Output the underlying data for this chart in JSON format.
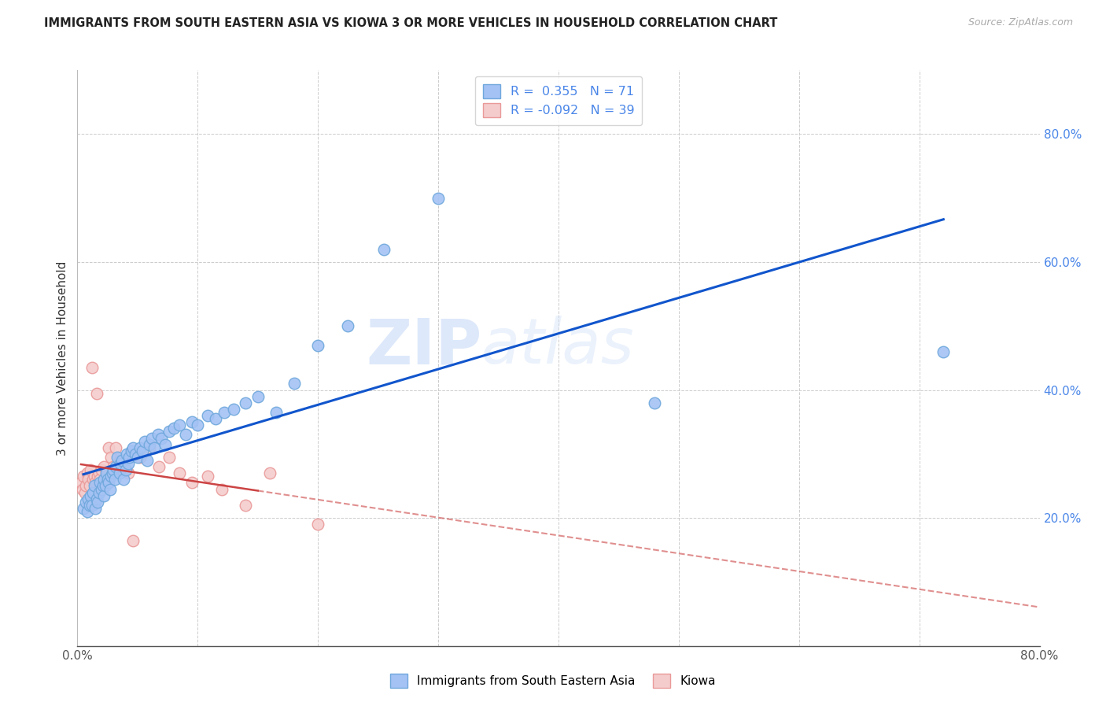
{
  "title": "IMMIGRANTS FROM SOUTH EASTERN ASIA VS KIOWA 3 OR MORE VEHICLES IN HOUSEHOLD CORRELATION CHART",
  "source": "Source: ZipAtlas.com",
  "ylabel": "3 or more Vehicles in Household",
  "xlim": [
    0.0,
    0.8
  ],
  "ylim": [
    0.0,
    0.9
  ],
  "blue_color": "#6fa8dc",
  "blue_fill": "#a4c2f4",
  "pink_color": "#ea9999",
  "pink_fill": "#f4cccc",
  "line_blue": "#1155cc",
  "line_pink": "#cc4444",
  "R_blue": 0.355,
  "N_blue": 71,
  "R_pink": -0.092,
  "N_pink": 39,
  "legend_label_blue": "Immigrants from South Eastern Asia",
  "legend_label_pink": "Kiowa",
  "watermark_zip": "ZIP",
  "watermark_atlas": "atlas",
  "blue_x": [
    0.005,
    0.007,
    0.008,
    0.009,
    0.01,
    0.011,
    0.012,
    0.013,
    0.014,
    0.015,
    0.016,
    0.017,
    0.018,
    0.019,
    0.02,
    0.021,
    0.022,
    0.022,
    0.023,
    0.024,
    0.025,
    0.026,
    0.027,
    0.028,
    0.029,
    0.03,
    0.031,
    0.032,
    0.033,
    0.035,
    0.036,
    0.037,
    0.038,
    0.04,
    0.041,
    0.042,
    0.043,
    0.045,
    0.046,
    0.048,
    0.05,
    0.052,
    0.054,
    0.056,
    0.058,
    0.06,
    0.062,
    0.064,
    0.067,
    0.07,
    0.073,
    0.076,
    0.08,
    0.085,
    0.09,
    0.095,
    0.1,
    0.108,
    0.115,
    0.122,
    0.13,
    0.14,
    0.15,
    0.165,
    0.18,
    0.2,
    0.225,
    0.255,
    0.3,
    0.48,
    0.72
  ],
  "blue_y": [
    0.215,
    0.225,
    0.21,
    0.23,
    0.22,
    0.235,
    0.22,
    0.24,
    0.25,
    0.215,
    0.23,
    0.225,
    0.24,
    0.255,
    0.245,
    0.25,
    0.26,
    0.235,
    0.25,
    0.27,
    0.26,
    0.255,
    0.245,
    0.265,
    0.27,
    0.275,
    0.26,
    0.28,
    0.295,
    0.27,
    0.285,
    0.29,
    0.26,
    0.275,
    0.3,
    0.285,
    0.295,
    0.305,
    0.31,
    0.3,
    0.295,
    0.31,
    0.305,
    0.32,
    0.29,
    0.315,
    0.325,
    0.31,
    0.33,
    0.325,
    0.315,
    0.335,
    0.34,
    0.345,
    0.33,
    0.35,
    0.345,
    0.36,
    0.355,
    0.365,
    0.37,
    0.38,
    0.39,
    0.365,
    0.41,
    0.47,
    0.5,
    0.62,
    0.7,
    0.38,
    0.46
  ],
  "pink_x": [
    0.003,
    0.004,
    0.005,
    0.006,
    0.007,
    0.008,
    0.009,
    0.01,
    0.011,
    0.012,
    0.013,
    0.014,
    0.015,
    0.016,
    0.017,
    0.018,
    0.019,
    0.02,
    0.022,
    0.024,
    0.026,
    0.028,
    0.03,
    0.032,
    0.035,
    0.038,
    0.042,
    0.046,
    0.052,
    0.06,
    0.068,
    0.076,
    0.085,
    0.095,
    0.108,
    0.12,
    0.14,
    0.16,
    0.2
  ],
  "pink_y": [
    0.255,
    0.245,
    0.265,
    0.24,
    0.25,
    0.27,
    0.26,
    0.25,
    0.275,
    0.435,
    0.26,
    0.265,
    0.255,
    0.395,
    0.265,
    0.27,
    0.26,
    0.275,
    0.28,
    0.265,
    0.31,
    0.295,
    0.28,
    0.31,
    0.29,
    0.275,
    0.27,
    0.165,
    0.295,
    0.31,
    0.28,
    0.295,
    0.27,
    0.255,
    0.265,
    0.245,
    0.22,
    0.27,
    0.19
  ]
}
